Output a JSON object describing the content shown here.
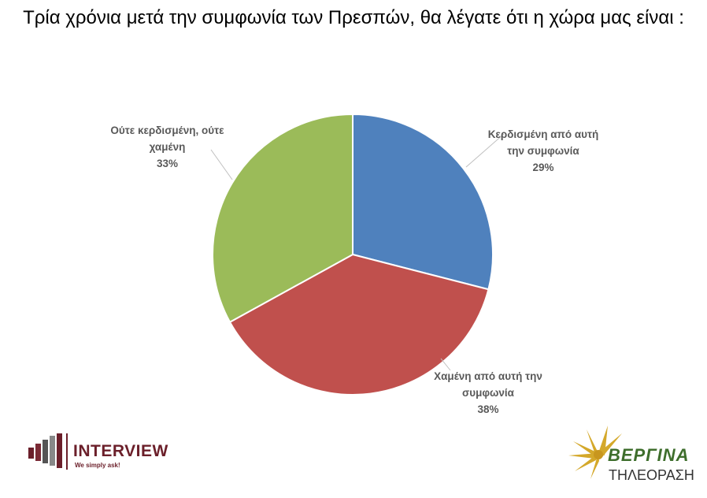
{
  "chart_data": {
    "type": "pie",
    "title": "Τρία χρόνια μετά την συμφωνία των Πρεσπών, θα λέγατε ότι η χώρα μας είναι :",
    "categories": [
      "Κερδισμένη από αυτή την συμφωνία",
      "Χαμένη από αυτή την συμφωνία",
      "Ούτε κερδισμένη, ούτε χαμένη"
    ],
    "values": [
      29,
      38,
      33
    ],
    "value_labels": [
      "29%",
      "38%",
      "33%"
    ],
    "colors": [
      "#4f81bd",
      "#c0504d",
      "#9bbb59"
    ]
  },
  "logos": {
    "interview": "INTERVIEW",
    "interview_slogan": "We simply ask!",
    "vergina": "ΒΕΡΓΙΝΑ",
    "vergina_sub": "ΤΗΛΕΟΡΑΣΗ"
  }
}
